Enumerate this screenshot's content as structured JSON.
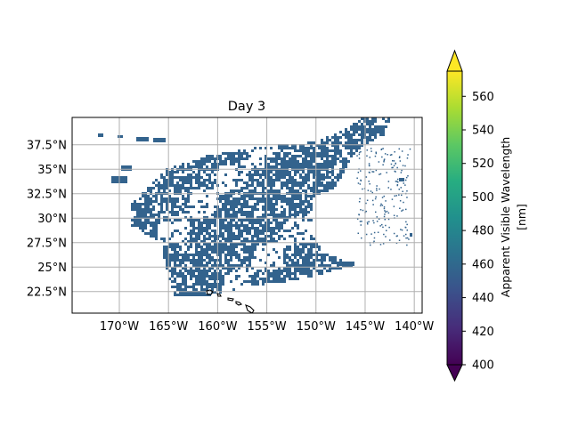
{
  "map": {
    "title": "Day 3",
    "lon_ticks": [
      "170°W",
      "165°W",
      "160°W",
      "155°W",
      "150°W",
      "145°W",
      "140°W"
    ],
    "lon_values": [
      -170,
      -165,
      -160,
      -155,
      -150,
      -145,
      -140
    ],
    "lat_ticks": [
      "37.5°N",
      "35°N",
      "32.5°N",
      "30°N",
      "27.5°N",
      "25°N",
      "22.5°N"
    ],
    "lat_values": [
      37.5,
      35,
      32.5,
      30,
      27.5,
      25,
      22.5
    ],
    "lon_range": [
      -174.8,
      -139.2
    ],
    "lat_range": [
      20.3,
      40.3
    ],
    "data_color": "#33638d",
    "gridlines": true,
    "coastlines": "Hawaiian Islands"
  },
  "colorbar": {
    "label_line1": "Apparent Visible Wavelength",
    "label_line2": "[nm]",
    "ticks": [
      "400",
      "420",
      "440",
      "460",
      "480",
      "500",
      "520",
      "540",
      "560"
    ],
    "tick_values": [
      400,
      420,
      440,
      460,
      480,
      500,
      520,
      540,
      560
    ],
    "vmin": 400,
    "vmax": 575,
    "extend": "both",
    "colormap": "viridis"
  }
}
